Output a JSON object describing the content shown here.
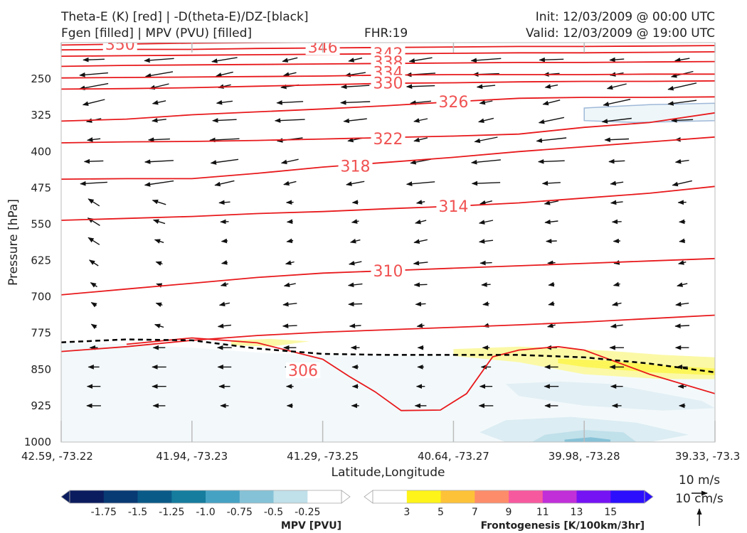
{
  "header": {
    "title_line1": "Theta-E (K) [red] | -D(theta-E)/DZ-[black]",
    "title_line2": "Fgen [filled] | MPV (PVU) [filled]",
    "fhr": "FHR:19",
    "init": "Init: 12/03/2009 @ 00:00 UTC",
    "valid": "Valid: 12/03/2009 @ 19:00 UTC"
  },
  "chart_data": {
    "type": "cross-section",
    "xlabel": "Latitude,Longitude",
    "ylabel": "Pressure [hPa]",
    "x_ticks": [
      "42.59, -73.22",
      "41.94, -73.23",
      "41.29, -73.25",
      "40.64, -73.27",
      "39.98, -73.28",
      "39.33, -73.3"
    ],
    "y_ticks": [
      250,
      325,
      400,
      475,
      550,
      625,
      700,
      775,
      850,
      925,
      1000
    ],
    "ylim": [
      1000,
      175
    ],
    "y_scale": "linear, inverted",
    "theta_e_contours": [
      {
        "label": "350",
        "color": "#e8191c",
        "points": [
          [
            0.0,
            180
          ],
          [
            0.5,
            178
          ],
          [
            1.0,
            176
          ],
          [
            1.5,
            175
          ],
          [
            2.0,
            174
          ],
          [
            2.5,
            173
          ],
          [
            3.0,
            172
          ],
          [
            3.5,
            172
          ],
          [
            4.0,
            171
          ],
          [
            5.0,
            170
          ]
        ],
        "label_at": [
          0.45,
          178
        ]
      },
      {
        "label": "346",
        "color": "#e8191c",
        "points": [
          [
            0.0,
            190
          ],
          [
            0.5,
            189
          ],
          [
            1.0,
            189
          ],
          [
            1.5,
            187
          ],
          [
            2.0,
            186
          ],
          [
            2.5,
            185
          ],
          [
            3.0,
            184
          ],
          [
            3.5,
            183
          ],
          [
            4.0,
            183
          ],
          [
            4.5,
            182
          ],
          [
            5.0,
            181
          ]
        ],
        "label_at": [
          2.0,
          184
        ]
      },
      {
        "label": "342",
        "color": "#e8191c",
        "points": [
          [
            0.0,
            203
          ],
          [
            0.5,
            202
          ],
          [
            1.0,
            201
          ],
          [
            1.5,
            200
          ],
          [
            2.0,
            199
          ],
          [
            2.5,
            198
          ],
          [
            3.0,
            197
          ],
          [
            3.5,
            196
          ],
          [
            4.0,
            196
          ],
          [
            4.5,
            195
          ],
          [
            5.0,
            194
          ]
        ],
        "label_at": [
          2.5,
          197
        ]
      },
      {
        "label": "338",
        "color": "#e8191c",
        "points": [
          [
            0.0,
            224
          ],
          [
            0.5,
            222
          ],
          [
            1.0,
            221
          ],
          [
            1.5,
            220
          ],
          [
            2.0,
            219
          ],
          [
            2.5,
            218
          ],
          [
            3.0,
            217
          ],
          [
            3.5,
            216
          ],
          [
            4.0,
            216
          ],
          [
            4.5,
            215
          ],
          [
            5.0,
            214
          ]
        ],
        "label_at": [
          2.5,
          215
        ]
      },
      {
        "label": "334",
        "color": "#e8191c",
        "points": [
          [
            0.0,
            248
          ],
          [
            0.5,
            247
          ],
          [
            1.0,
            246
          ],
          [
            1.5,
            245
          ],
          [
            2.0,
            244
          ],
          [
            2.5,
            242
          ],
          [
            3.0,
            241
          ],
          [
            3.5,
            241
          ],
          [
            4.0,
            241
          ],
          [
            4.5,
            240
          ],
          [
            5.0,
            240
          ]
        ],
        "label_at": [
          2.5,
          236
        ]
      },
      {
        "label": "330",
        "color": "#e8191c",
        "points": [
          [
            0.0,
            271
          ],
          [
            0.5,
            270
          ],
          [
            1.0,
            268
          ],
          [
            1.5,
            265
          ],
          [
            2.0,
            262
          ],
          [
            2.5,
            259
          ],
          [
            3.0,
            258
          ],
          [
            3.5,
            256
          ],
          [
            4.0,
            255
          ],
          [
            4.5,
            255
          ],
          [
            5.0,
            254
          ]
        ],
        "label_at": [
          2.5,
          258
        ]
      },
      {
        "label": "326",
        "color": "#e8191c",
        "points": [
          [
            0.0,
            337
          ],
          [
            0.5,
            333
          ],
          [
            1.0,
            324
          ],
          [
            1.5,
            318
          ],
          [
            2.0,
            312
          ],
          [
            2.5,
            305
          ],
          [
            3.0,
            297
          ],
          [
            3.5,
            290
          ],
          [
            4.0,
            288
          ],
          [
            4.5,
            288
          ],
          [
            5.0,
            287
          ]
        ],
        "label_at": [
          3.0,
          297
        ]
      },
      {
        "label": "322",
        "color": "#e8191c",
        "points": [
          [
            0.0,
            382
          ],
          [
            0.5,
            380
          ],
          [
            1.0,
            379
          ],
          [
            1.5,
            377
          ],
          [
            2.0,
            374
          ],
          [
            2.5,
            371
          ],
          [
            3.0,
            368
          ],
          [
            3.5,
            364
          ],
          [
            4.0,
            350
          ],
          [
            4.5,
            340
          ],
          [
            5.0,
            320
          ]
        ],
        "label_at": [
          2.5,
          373
        ]
      },
      {
        "label": "318",
        "color": "#e8191c",
        "points": [
          [
            0.0,
            457
          ],
          [
            0.5,
            456
          ],
          [
            1.0,
            456
          ],
          [
            1.5,
            445
          ],
          [
            2.0,
            432
          ],
          [
            2.5,
            422
          ],
          [
            3.0,
            412
          ],
          [
            3.5,
            400
          ],
          [
            4.0,
            390
          ],
          [
            4.5,
            380
          ],
          [
            5.0,
            370
          ]
        ],
        "label_at": [
          2.25,
          430
        ]
      },
      {
        "label": "314",
        "color": "#e8191c",
        "points": [
          [
            0.0,
            542
          ],
          [
            0.5,
            538
          ],
          [
            1.0,
            534
          ],
          [
            1.5,
            528
          ],
          [
            2.0,
            524
          ],
          [
            2.5,
            518
          ],
          [
            3.0,
            513
          ],
          [
            3.5,
            506
          ],
          [
            4.0,
            496
          ],
          [
            4.5,
            486
          ],
          [
            5.0,
            472
          ]
        ],
        "label_at": [
          3.0,
          513
        ]
      },
      {
        "label": "310",
        "color": "#e8191c",
        "points": [
          [
            0.0,
            696
          ],
          [
            0.5,
            684
          ],
          [
            1.0,
            672
          ],
          [
            1.5,
            660
          ],
          [
            2.0,
            651
          ],
          [
            2.5,
            646
          ],
          [
            3.0,
            641
          ],
          [
            3.5,
            636
          ],
          [
            4.0,
            631
          ],
          [
            4.5,
            626
          ],
          [
            5.0,
            621
          ]
        ],
        "label_at": [
          2.5,
          646
        ]
      },
      {
        "label": "",
        "color": "#e8191c",
        "points": [
          [
            0.0,
            813
          ],
          [
            0.5,
            803
          ],
          [
            1.0,
            790
          ],
          [
            1.5,
            780
          ],
          [
            2.0,
            773
          ],
          [
            2.5,
            768
          ],
          [
            3.0,
            763
          ],
          [
            3.5,
            758
          ],
          [
            4.0,
            752
          ],
          [
            4.5,
            745
          ],
          [
            5.0,
            738
          ]
        ],
        "label_at": null
      },
      {
        "label": "306",
        "color": "#e8191c",
        "points": [
          [
            0.5,
            798
          ],
          [
            1.0,
            785
          ],
          [
            1.5,
            795
          ],
          [
            2.0,
            829
          ],
          [
            2.2,
            864
          ],
          [
            2.4,
            896
          ],
          [
            2.6,
            935
          ],
          [
            2.9,
            934
          ],
          [
            3.1,
            900
          ],
          [
            3.3,
            824
          ],
          [
            3.5,
            810
          ],
          [
            3.8,
            803
          ],
          [
            4.0,
            810
          ],
          [
            4.5,
            860
          ],
          [
            5.0,
            900
          ]
        ],
        "label_at": [
          1.85,
          852
        ]
      }
    ],
    "dashed_zero_line": [
      [
        0.0,
        794
      ],
      [
        0.5,
        788
      ],
      [
        1.0,
        790
      ],
      [
        1.5,
        807
      ],
      [
        2.0,
        818
      ],
      [
        2.5,
        820
      ],
      [
        3.0,
        820
      ],
      [
        3.5,
        820
      ],
      [
        4.0,
        825
      ],
      [
        4.5,
        838
      ],
      [
        5.0,
        856
      ]
    ],
    "fgen_region_label": "Frontogenesis [K/100km/3hr]",
    "mpv_region_label": "MPV [PVU]",
    "colorbars": {
      "mpv": {
        "label": "MPV [PVU]",
        "tick_labels": [
          "-1.75",
          "-1.5",
          "-1.25",
          "-1.0",
          "-0.75",
          "-0.5",
          "-0.25"
        ],
        "colors": [
          "#0a1c5e",
          "#083a74",
          "#0a5a88",
          "#167d9e",
          "#46a2c3",
          "#86c2d7",
          "#c0e0ea",
          "#ffffff"
        ]
      },
      "fgen": {
        "label": "Frontogenesis [K/100km/3hr]",
        "tick_labels": [
          "3",
          "5",
          "7",
          "9",
          "11",
          "13",
          "15"
        ],
        "colors": [
          "#ffffff",
          "#fef41a",
          "#fec239",
          "#fd8d6a",
          "#f7599e",
          "#c02fd8",
          "#7513f4",
          "#2c0ffd"
        ]
      }
    },
    "wind_key": {
      "horizontal": "10 m/s",
      "vertical": "10 cm/s"
    }
  }
}
